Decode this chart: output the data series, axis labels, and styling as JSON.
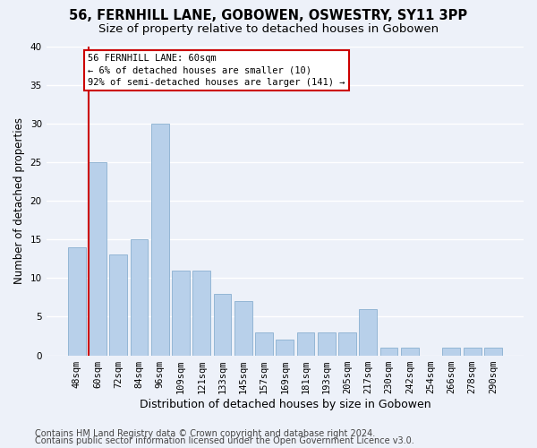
{
  "title": "56, FERNHILL LANE, GOBOWEN, OSWESTRY, SY11 3PP",
  "subtitle": "Size of property relative to detached houses in Gobowen",
  "xlabel": "Distribution of detached houses by size in Gobowen",
  "ylabel": "Number of detached properties",
  "categories": [
    "48sqm",
    "60sqm",
    "72sqm",
    "84sqm",
    "96sqm",
    "109sqm",
    "121sqm",
    "133sqm",
    "145sqm",
    "157sqm",
    "169sqm",
    "181sqm",
    "193sqm",
    "205sqm",
    "217sqm",
    "230sqm",
    "242sqm",
    "254sqm",
    "266sqm",
    "278sqm",
    "290sqm"
  ],
  "values": [
    14,
    25,
    13,
    15,
    30,
    11,
    11,
    8,
    7,
    3,
    2,
    3,
    3,
    3,
    6,
    1,
    1,
    0,
    1,
    1,
    1
  ],
  "bar_color": "#b8d0ea",
  "bar_edgecolor": "#8ab0d0",
  "highlight_index": 1,
  "highlight_line_color": "#cc0000",
  "ylim": [
    0,
    40
  ],
  "yticks": [
    0,
    5,
    10,
    15,
    20,
    25,
    30,
    35,
    40
  ],
  "annotation_line1": "56 FERNHILL LANE: 60sqm",
  "annotation_line2": "← 6% of detached houses are smaller (10)",
  "annotation_line3": "92% of semi-detached houses are larger (141) →",
  "annotation_box_facecolor": "#ffffff",
  "annotation_box_edgecolor": "#cc0000",
  "footer1": "Contains HM Land Registry data © Crown copyright and database right 2024.",
  "footer2": "Contains public sector information licensed under the Open Government Licence v3.0.",
  "background_color": "#edf1f9",
  "grid_color": "#ffffff",
  "title_fontsize": 10.5,
  "subtitle_fontsize": 9.5,
  "ylabel_fontsize": 8.5,
  "xlabel_fontsize": 9,
  "tick_fontsize": 7.5,
  "annotation_fontsize": 7.5,
  "footer_fontsize": 7
}
